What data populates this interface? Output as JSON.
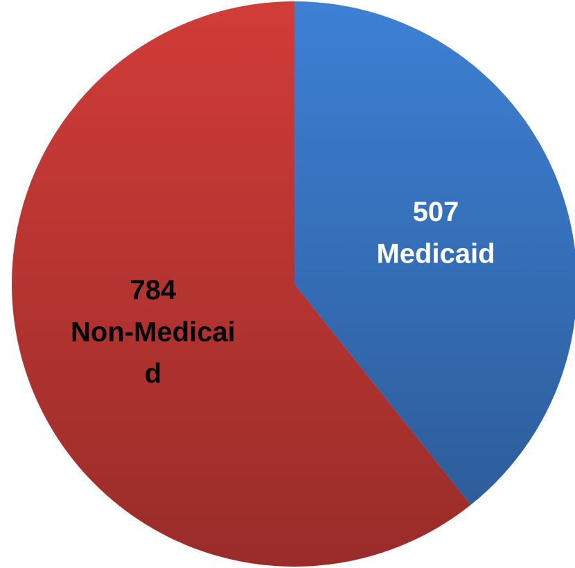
{
  "chart_data": {
    "type": "pie",
    "categories": [
      "Medicaid",
      "Non-Medicaid"
    ],
    "values": [
      507,
      784
    ],
    "colors": [
      "#3b7bcc",
      "#c93a36"
    ],
    "label_colors": [
      "#ffffff",
      "#000000"
    ]
  }
}
